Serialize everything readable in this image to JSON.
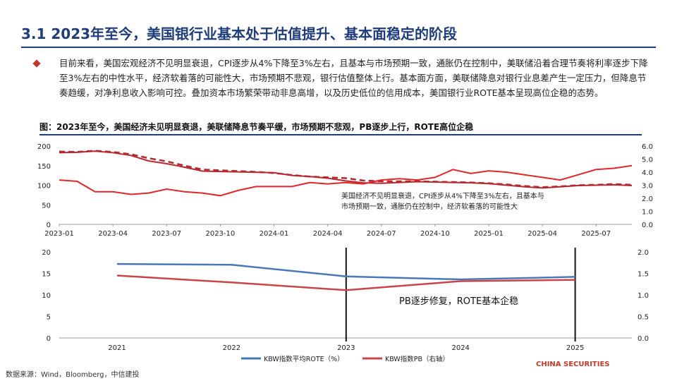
{
  "page": {
    "title": "3.1 2023年至今，美国银行业基本处于估值提升、基本面稳定的阶段",
    "paragraph": "目前来看，美国宏观经济不见明显衰退，CPI逐步从4%下降至3%左右，且基本与市场预期一致，通胀仍在控制中，美联储沿着合理节奏将利率逐步下降至3%左右的中性水平，经济软着落的可能性大，市场预期不悲观，银行估值整体上行。基本面方面，美联储降息对银行业息差产生一定压力，但降息节奏趋缓，对净利息收入影响可控。叠加资本市场繁荣带动非息高增，以及历史低位的信用成本，美国银行业ROTE基本呈现高位企稳的态势。",
    "figure_title": "图：2023年至今，美国经济未见明显衰退，美联储降息节奏平缓，市场预期不悲观，PB逐步上行，ROTE高位企稳",
    "source": "数据来源：Wind，Bloomberg，中信建投",
    "brand": "CHINA SECURITIES",
    "colors": {
      "title": "#1f3d7a",
      "blue": "#4a78b5",
      "red": "#c0392b",
      "darkred": "#b5282e"
    }
  },
  "chart_data": [
    {
      "type": "line",
      "title": "",
      "x_ticks": [
        "2023-01",
        "2023-04",
        "2023-07",
        "2023-10",
        "2024-01",
        "2024-04",
        "2024-07",
        "2024-10",
        "2025-01",
        "2025-04",
        "2025-07"
      ],
      "y_left_ticks": [
        "200",
        "150",
        "100",
        "50",
        "0"
      ],
      "y_right_ticks": [
        "6.0",
        "5.0",
        "4.0",
        "3.0",
        "2.0",
        "1.0",
        "0.0"
      ],
      "ylim_left": [
        0,
        200
      ],
      "ylim_right": [
        0,
        6
      ],
      "annotation": [
        "美国经济不见明显衰退，CPI逐步从4%下降至3%左右，且基本与",
        "市场预期一致，通胀仍在控制中，经济软着落的可能性大"
      ],
      "series": [
        {
          "name": "dark red solid (left)",
          "axis": "left",
          "x": [
            0,
            1,
            2,
            3,
            4,
            5,
            6,
            7,
            8,
            9,
            10,
            11,
            12,
            13,
            14,
            15,
            16,
            17,
            18,
            19,
            20,
            21,
            22,
            23,
            24,
            25,
            26,
            27,
            28,
            29,
            30,
            31,
            32
          ],
          "values": [
            183,
            184,
            187,
            183,
            176,
            162,
            155,
            146,
            136,
            135,
            134,
            133,
            132,
            125,
            122,
            118,
            111,
            106,
            105,
            107,
            109,
            108,
            107,
            106,
            104,
            100,
            96,
            93,
            96,
            99,
            100,
            101,
            99
          ]
        },
        {
          "name": "dark red dashed (left)",
          "axis": "left",
          "x": [
            0,
            1,
            2,
            3,
            4,
            5,
            6,
            7,
            8,
            9,
            10,
            11,
            12,
            13,
            14,
            15,
            16,
            17,
            18,
            19,
            20,
            21,
            22,
            23,
            24,
            25,
            26,
            27,
            28,
            29,
            30,
            31,
            32
          ],
          "values": [
            186,
            185,
            188,
            185,
            179,
            169,
            161,
            150,
            140,
            138,
            136,
            134,
            131,
            126,
            122,
            120,
            118,
            112,
            110,
            110,
            110,
            109,
            108,
            107,
            105,
            102,
            98,
            95,
            97,
            100,
            101,
            103,
            101
          ]
        },
        {
          "name": "red solid (right)",
          "axis": "right",
          "x": [
            0,
            1,
            2,
            3,
            4,
            5,
            6,
            7,
            8,
            9,
            10,
            11,
            12,
            13,
            14,
            15,
            16,
            17,
            18,
            19,
            20,
            21,
            22,
            23,
            24,
            25,
            26,
            27,
            28,
            29,
            30,
            31,
            32
          ],
          "values": [
            3.4,
            3.3,
            2.5,
            2.5,
            2.3,
            2.4,
            2.7,
            2.5,
            2.4,
            2.2,
            2.6,
            2.9,
            2.9,
            2.9,
            3.2,
            3.1,
            3.2,
            3.1,
            3.4,
            3.5,
            3.4,
            3.6,
            4.2,
            3.9,
            4.1,
            4.0,
            3.8,
            3.6,
            3.4,
            3.8,
            4.2,
            4.3,
            4.5
          ]
        }
      ]
    },
    {
      "type": "line",
      "title": "",
      "categories": [
        "2021",
        "2022",
        "2023",
        "2024",
        "2025"
      ],
      "y_left_ticks": [
        "20",
        "15",
        "10",
        "5",
        "0"
      ],
      "y_right_ticks": [
        "2.0",
        "1.5",
        "1.0",
        "0.5",
        "0.0"
      ],
      "ylim_left": [
        0,
        20
      ],
      "ylim_right": [
        0,
        2
      ],
      "annotation": "PB逐步修复，ROTE基本企稳",
      "vertical_markers": [
        "2023",
        "2025"
      ],
      "legend": [
        "KBW指数平均ROTE（%）",
        "KBW指数PB（右轴）"
      ],
      "series": [
        {
          "name": "KBW指数平均ROTE（%）",
          "axis": "left",
          "values": [
            17.2,
            17.0,
            14.3,
            13.6,
            14.2
          ]
        },
        {
          "name": "KBW指数PB（右轴）",
          "axis": "right",
          "values": [
            1.45,
            1.29,
            1.11,
            1.32,
            1.35
          ]
        }
      ]
    }
  ]
}
